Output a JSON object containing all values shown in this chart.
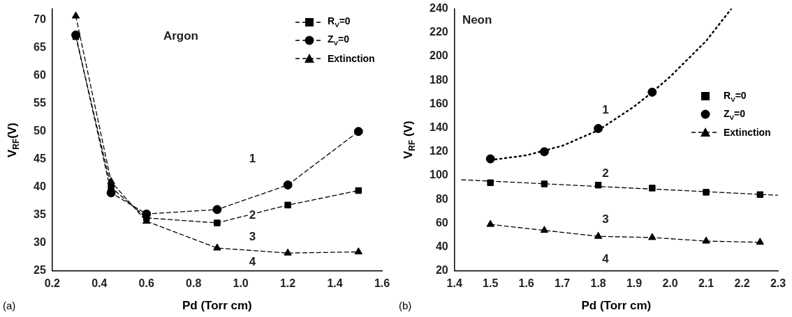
{
  "chart_data": [
    {
      "type": "line",
      "xlabel": "Pd (Torr cm)",
      "ylabel": "V$_{RF}$(V)",
      "legend": "top right",
      "xlim": [
        0.2,
        1.6
      ],
      "xticks": [
        0.2,
        0.4,
        0.6,
        0.8,
        {
          "value": 1,
          "label": "1.0"
        },
        1.2,
        1.4,
        1.6
      ],
      "ylim": [
        25,
        72
      ],
      "yticks": [
        25,
        30,
        35,
        40,
        45,
        50,
        55,
        60,
        65,
        70
      ],
      "x": [
        0.3,
        0.45,
        0.6,
        0.9,
        1.2,
        1.5
      ],
      "series": [
        {
          "name": "R$_{V}$=0",
          "color": "#000000",
          "marker": "square",
          "line_style": "dashed",
          "values": [
            67,
            40,
            34.5,
            33.6,
            36.8,
            39.4
          ]
        },
        {
          "name": "Z$_{V}$=0",
          "color": "#000000",
          "marker": "circle",
          "line_style": "dashed",
          "values": [
            67.3,
            39,
            35.2,
            36,
            40.4,
            50
          ]
        },
        {
          "name": "Extinction",
          "color": "#000000",
          "marker": "triangle",
          "line_style": "dashed",
          "values": [
            70.7,
            41,
            33.9,
            29.1,
            28.2,
            28.4
          ]
        }
      ],
      "annotations": [
        "Argon",
        "1",
        "2",
        "3",
        "4",
        "(a)"
      ]
    },
    {
      "type": "line",
      "xlabel": "Pd (Torr cm)",
      "ylabel": "V$_{RF}$ (V)",
      "legend": "right",
      "xlim": [
        1.4,
        2.3
      ],
      "xticks": [
        1.4,
        1.5,
        1.6,
        1.7,
        1.8,
        1.9,
        {
          "value": 2,
          "label": "2.0"
        },
        2.1,
        2.2,
        2.3
      ],
      "ylim": [
        20,
        240
      ],
      "yticks": [
        20,
        40,
        60,
        80,
        100,
        120,
        140,
        160,
        180,
        200,
        220,
        240
      ],
      "x": [
        1.5,
        1.65,
        1.8,
        1.95,
        2.1,
        2.25
      ],
      "series": [
        {
          "name": "R$_{V}$=0",
          "type": "scatter",
          "color": "#000000",
          "marker": "square",
          "values": [
            94,
            93,
            92,
            89.5,
            86,
            84
          ]
        },
        {
          "name": "Z$_{V}$=0",
          "type": "scatter",
          "color": "#000000",
          "marker": "circle",
          "values": [
            114,
            120,
            139.5,
            170,
            null,
            null
          ]
        },
        {
          "name": "Extinction",
          "color": "#000000",
          "marker": "triangle",
          "line_style": "dashed",
          "values": [
            59,
            54,
            49,
            48,
            45,
            44
          ]
        },
        {
          "type": "line",
          "color": "#000000",
          "marker": "none",
          "line_style": "dotted",
          "x": [
            1.5,
            1.6,
            1.7,
            1.8,
            1.9,
            1.95,
            2.0,
            2.1,
            2.17
          ],
          "values": [
            113,
            117,
            125,
            138,
            158,
            170,
            183,
            213,
            240
          ]
        },
        {
          "type": "line",
          "color": "#000000",
          "marker": "none",
          "line_style": "dashed",
          "x": [
            1.42,
            2.3
          ],
          "values": [
            96.5,
            83.5
          ]
        }
      ],
      "annotations": [
        "Neon",
        "1",
        "2",
        "3",
        "4",
        "(b)"
      ]
    }
  ]
}
